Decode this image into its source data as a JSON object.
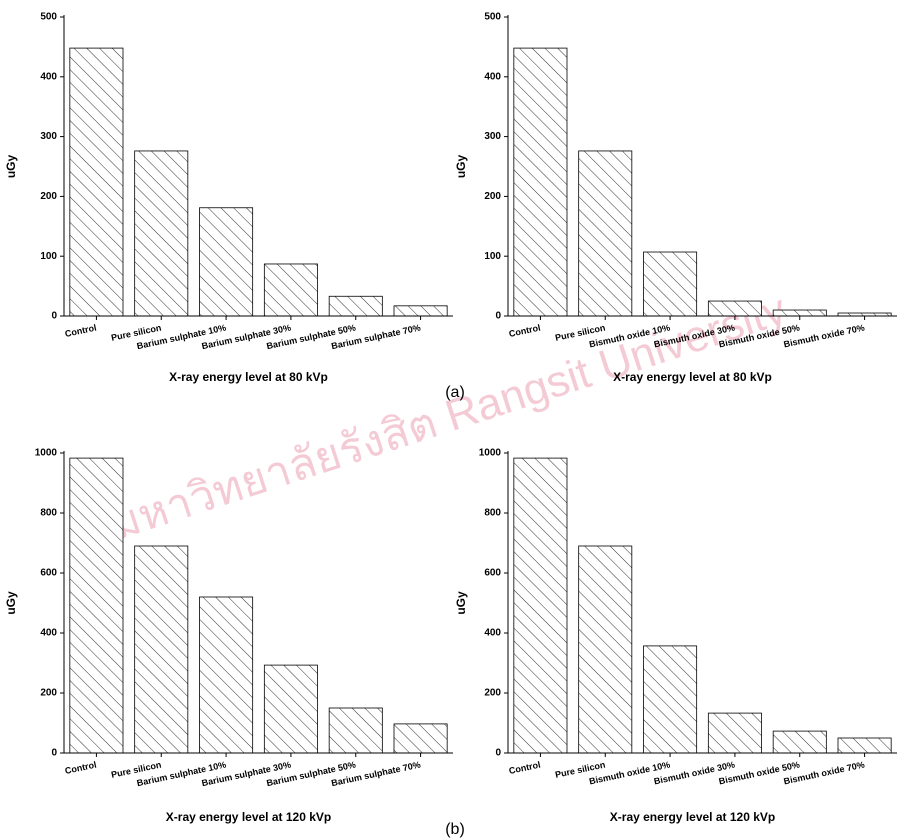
{
  "chart_data": [
    {
      "type": "bar",
      "xlabel": "X-ray energy level at 80 kVp",
      "ylabel": "uGy",
      "categories": [
        "Control",
        "Pure silicon",
        "Barium sulphate 10%",
        "Barium sulphate 30%",
        "Barium sulphate 50%",
        "Barium sulphate 70%"
      ],
      "values": [
        448,
        276,
        181,
        87,
        33,
        17
      ],
      "color": "#000000",
      "ylim": [
        0,
        500
      ],
      "yticks": [
        0,
        100,
        200,
        300,
        400,
        500
      ]
    },
    {
      "type": "bar",
      "xlabel": "X-ray energy level at 80 kVp",
      "ylabel": "uGy",
      "categories": [
        "Control",
        "Pure silicon",
        "Bismuth oxide 10%",
        "Bismuth oxide 30%",
        "Bismuth oxide 50%",
        "Bismuth oxide 70%"
      ],
      "values": [
        448,
        276,
        107,
        25,
        10,
        5
      ],
      "color": "#000000",
      "ylim": [
        0,
        500
      ],
      "yticks": [
        0,
        100,
        200,
        300,
        400,
        500
      ]
    },
    {
      "type": "bar",
      "xlabel": "X-ray energy level at 120 kVp",
      "ylabel": "uGy",
      "categories": [
        "Control",
        "Pure silicon",
        "Barium sulphate 10%",
        "Barium sulphate 30%",
        "Barium sulphate 50%",
        "Barium sulphate 70%"
      ],
      "values": [
        983,
        690,
        520,
        293,
        150,
        97
      ],
      "color": "#000000",
      "ylim": [
        0,
        1000
      ],
      "yticks": [
        0,
        200,
        400,
        600,
        800,
        1000
      ]
    },
    {
      "type": "bar",
      "xlabel": "X-ray energy level at 120 kVp",
      "ylabel": "uGy",
      "categories": [
        "Control",
        "Pure silicon",
        "Bismuth oxide 10%",
        "Bismuth oxide 30%",
        "Bismuth oxide 50%",
        "Bismuth oxide 70%"
      ],
      "values": [
        983,
        690,
        357,
        133,
        73,
        50
      ],
      "color": "#000000",
      "ylim": [
        0,
        1000
      ],
      "yticks": [
        0,
        200,
        400,
        600,
        800,
        1000
      ]
    }
  ],
  "panel_labels": [
    "(a)",
    "(b)"
  ],
  "watermark": "มหาวิทยาลัยรังสิต Rangsit University"
}
